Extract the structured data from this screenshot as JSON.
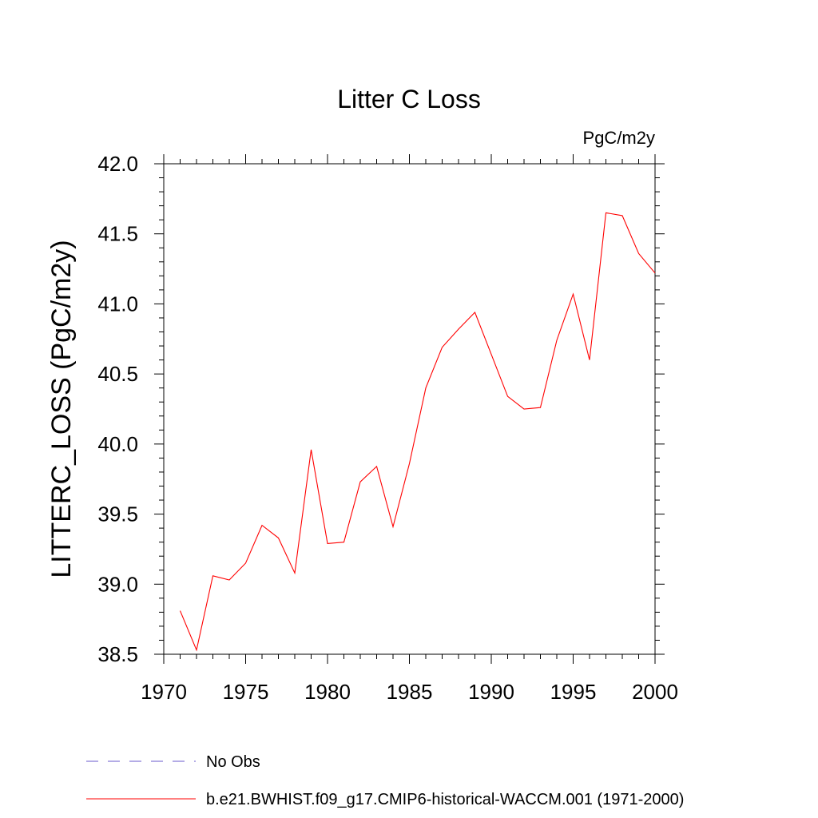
{
  "chart_data": {
    "type": "line",
    "title": "Litter C Loss",
    "units": "PgC/m2y",
    "xlabel": "",
    "ylabel": "LITTERC_LOSS  (PgC/m2y)",
    "xlim": [
      1970,
      2000
    ],
    "ylim": [
      38.5,
      42.0
    ],
    "x_ticks": [
      "1970",
      "1975",
      "1980",
      "1985",
      "1990",
      "1995",
      "2000"
    ],
    "y_ticks": [
      "38.5",
      "39.0",
      "39.5",
      "40.0",
      "40.5",
      "41.0",
      "41.5",
      "42.0"
    ],
    "grid": false,
    "legend_position": "bottom",
    "series": [
      {
        "name": "b.e21.BWHIST.f09_g17.CMIP6-historical-WACCM.001 (1971-2000)",
        "color": "#ff0000",
        "style": "solid",
        "x": [
          1971,
          1972,
          1973,
          1974,
          1975,
          1976,
          1977,
          1978,
          1979,
          1980,
          1981,
          1982,
          1983,
          1984,
          1985,
          1986,
          1987,
          1988,
          1989,
          1990,
          1991,
          1992,
          1993,
          1994,
          1995,
          1996,
          1997,
          1998,
          1999,
          2000
        ],
        "values": [
          38.81,
          38.53,
          39.06,
          39.03,
          39.15,
          39.42,
          39.33,
          39.08,
          39.96,
          39.29,
          39.3,
          39.73,
          39.84,
          39.41,
          39.86,
          40.4,
          40.69,
          40.82,
          40.94,
          40.64,
          40.34,
          40.25,
          40.26,
          40.74,
          41.07,
          40.6,
          41.65,
          41.63,
          41.36,
          41.22
        ]
      }
    ],
    "legend": [
      {
        "label": "No Obs",
        "color": "#6a5acd",
        "style": "dashed"
      },
      {
        "label": "b.e21.BWHIST.f09_g17.CMIP6-historical-WACCM.001 (1971-2000)",
        "color": "#ff0000",
        "style": "solid"
      }
    ]
  }
}
